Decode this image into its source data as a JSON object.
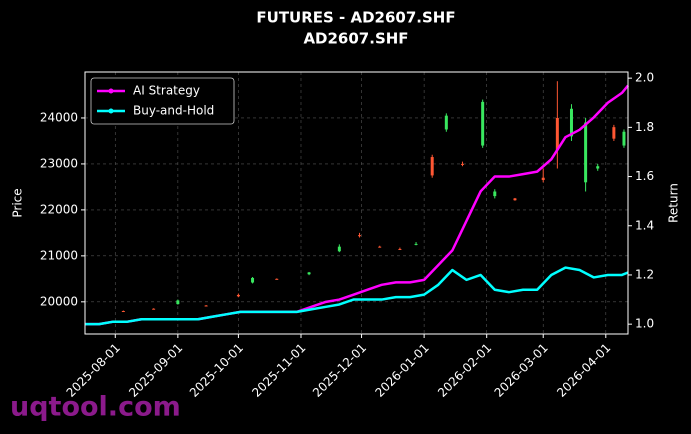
{
  "chart_data": {
    "type": "candlestick",
    "title": "FUTURES - AD2607.SHF",
    "subtitle": "AD2607.SHF",
    "y_label": "Price",
    "y2_label": "Return",
    "watermark": "uqtool.com",
    "xlim": [
      "2025-07-17",
      "2026-04-12"
    ],
    "xticks": [
      "2025-08-01",
      "2025-09-01",
      "2025-10-01",
      "2025-11-01",
      "2025-12-01",
      "2026-01-01",
      "2026-02-01",
      "2026-03-01",
      "2026-04-01"
    ],
    "ylim": [
      19300,
      25000
    ],
    "yticks": [
      20000,
      21000,
      22000,
      23000,
      24000
    ],
    "y2lim": [
      0.96,
      2.025
    ],
    "y2ticks": [
      {
        "value": 1,
        "label": "1.0"
      },
      1.2,
      1.4,
      1.6,
      1.8,
      {
        "value": 2,
        "label": "2.0"
      }
    ],
    "grid": true,
    "legend": "upper left",
    "up_color": "#39e75f",
    "down_color": "#ff5733",
    "candles": {
      "dates": [
        "2025-08-05",
        "2025-08-20",
        "2025-09-01",
        "2025-09-15",
        "2025-10-01",
        "2025-10-08",
        "2025-10-20",
        "2025-11-05",
        "2025-11-20",
        "2025-11-30",
        "2025-12-10",
        "2025-12-20",
        "2025-12-28",
        "2026-01-05",
        "2026-01-12",
        "2026-01-20",
        "2026-01-30",
        "2026-02-05",
        "2026-02-15",
        "2026-03-01",
        "2026-03-08",
        "2026-03-15",
        "2026-03-22",
        "2026-03-28",
        "2026-04-05",
        "2026-04-10"
      ],
      "open": [
        19800,
        19850,
        19950,
        19920,
        20150,
        20420,
        20500,
        20600,
        21100,
        21450,
        21200,
        21150,
        21250,
        23150,
        23750,
        23000,
        23400,
        22300,
        22250,
        22700,
        24000,
        23600,
        22600,
        22900,
        23800,
        23400
      ],
      "high": [
        19810,
        19860,
        20050,
        19930,
        20180,
        20540,
        20510,
        20650,
        21250,
        21500,
        21220,
        21180,
        21300,
        23200,
        24100,
        23050,
        24400,
        22450,
        22260,
        22900,
        24800,
        24300,
        24000,
        23000,
        23850,
        23750
      ],
      "low": [
        19790,
        19840,
        19940,
        19910,
        20100,
        20400,
        20490,
        20580,
        21080,
        21400,
        21180,
        21130,
        21230,
        22700,
        23700,
        22950,
        23350,
        22250,
        22200,
        22600,
        22900,
        23500,
        22400,
        22850,
        23500,
        23350
      ],
      "close": [
        19790,
        19840,
        20030,
        19910,
        20120,
        20520,
        20490,
        20640,
        21200,
        21430,
        21190,
        21140,
        21260,
        22750,
        24050,
        22980,
        24350,
        22400,
        22210,
        22650,
        23300,
        24200,
        23900,
        22950,
        23550,
        23700
      ]
    },
    "x": [
      "2025-07-17",
      "2025-07-24",
      "2025-07-31",
      "2025-08-07",
      "2025-08-14",
      "2025-08-21",
      "2025-08-28",
      "2025-09-04",
      "2025-09-11",
      "2025-09-18",
      "2025-09-25",
      "2025-10-02",
      "2025-10-09",
      "2025-10-16",
      "2025-10-23",
      "2025-10-30",
      "2025-11-06",
      "2025-11-13",
      "2025-11-20",
      "2025-11-27",
      "2025-12-04",
      "2025-12-11",
      "2025-12-18",
      "2025-12-25",
      "2026-01-01",
      "2026-01-08",
      "2026-01-15",
      "2026-01-22",
      "2026-01-29",
      "2026-02-05",
      "2026-02-12",
      "2026-02-19",
      "2026-02-26",
      "2026-03-05",
      "2026-03-12",
      "2026-03-19",
      "2026-03-26",
      "2026-04-02",
      "2026-04-09",
      "2026-04-12"
    ],
    "series": [
      {
        "name": "AI Strategy",
        "color": "#ff00ff",
        "axis": "y2",
        "values": [
          1.0,
          1.0,
          1.01,
          1.01,
          1.02,
          1.02,
          1.02,
          1.02,
          1.02,
          1.03,
          1.04,
          1.05,
          1.05,
          1.05,
          1.05,
          1.05,
          1.07,
          1.09,
          1.1,
          1.12,
          1.14,
          1.16,
          1.17,
          1.17,
          1.18,
          1.24,
          1.3,
          1.42,
          1.54,
          1.6,
          1.6,
          1.61,
          1.62,
          1.67,
          1.76,
          1.79,
          1.84,
          1.9,
          1.94,
          1.97
        ]
      },
      {
        "name": "Buy-and-Hold",
        "color": "#00ffff",
        "axis": "y2",
        "values": [
          1.0,
          1.0,
          1.01,
          1.01,
          1.02,
          1.02,
          1.02,
          1.02,
          1.02,
          1.03,
          1.04,
          1.05,
          1.05,
          1.05,
          1.05,
          1.05,
          1.06,
          1.07,
          1.08,
          1.1,
          1.1,
          1.1,
          1.11,
          1.11,
          1.12,
          1.16,
          1.22,
          1.18,
          1.2,
          1.14,
          1.13,
          1.14,
          1.14,
          1.2,
          1.23,
          1.22,
          1.19,
          1.2,
          1.2,
          1.21
        ]
      }
    ]
  }
}
